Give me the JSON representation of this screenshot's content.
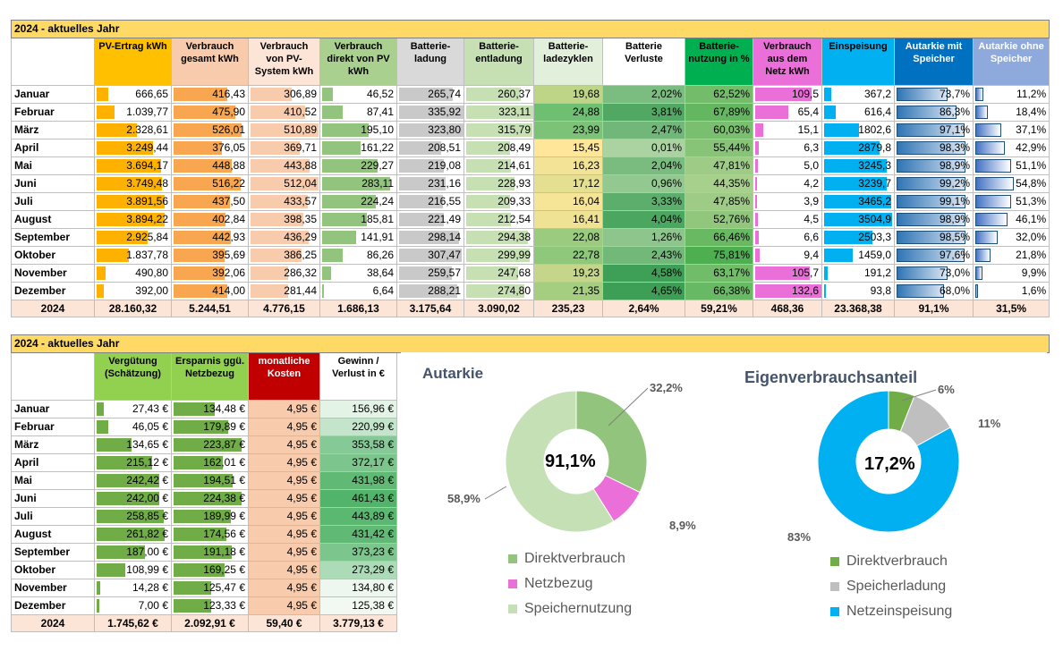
{
  "t1": {
    "title": "2024 - aktuelles Jahr",
    "headers": [
      "",
      "PV-Ertrag kWh",
      "Verbrauch gesamt  kWh",
      "Verbrauch von PV-System kWh",
      "Verbrauch direkt von PV kWh",
      "Batterie-ladung",
      "Batterie-entladung",
      "Batterie-ladezyklen",
      "Batterie Verluste",
      "Batterie-nutzung in %",
      "Verbrauch aus dem Netz kWh",
      "Einspeisung",
      "Autarkie mit Speicher",
      "Autarkie ohne Speicher"
    ],
    "rows": [
      [
        "Januar",
        "666,65",
        "416,43",
        "306,89",
        "46,52",
        "265,74",
        "260,37",
        "19,68",
        "2,02%",
        "62,52%",
        "109,5",
        "367,2",
        "73,7%",
        "11,2%"
      ],
      [
        "Februar",
        "1.039,77",
        "475,90",
        "410,52",
        "87,41",
        "335,92",
        "323,11",
        "24,88",
        "3,81%",
        "67,89%",
        "65,4",
        "616,4",
        "86,3%",
        "18,4%"
      ],
      [
        "März",
        "2.328,61",
        "526,01",
        "510,89",
        "195,10",
        "323,80",
        "315,79",
        "23,99",
        "2,47%",
        "60,03%",
        "15,1",
        "1802,6",
        "97,1%",
        "37,1%"
      ],
      [
        "April",
        "3.249,44",
        "376,05",
        "369,71",
        "161,22",
        "208,51",
        "208,49",
        "15,45",
        "0,01%",
        "55,44%",
        "6,3",
        "2879,8",
        "98,3%",
        "42,9%"
      ],
      [
        "Mai",
        "3.694,17",
        "448,88",
        "443,88",
        "229,27",
        "219,08",
        "214,61",
        "16,23",
        "2,04%",
        "47,81%",
        "5,0",
        "3245,3",
        "98,9%",
        "51,1%"
      ],
      [
        "Juni",
        "3.749,48",
        "516,22",
        "512,04",
        "283,11",
        "231,16",
        "228,93",
        "17,12",
        "0,96%",
        "44,35%",
        "4,2",
        "3239,7",
        "99,2%",
        "54,8%"
      ],
      [
        "Juli",
        "3.891,56",
        "437,50",
        "433,57",
        "224,24",
        "216,55",
        "209,33",
        "16,04",
        "3,33%",
        "47,85%",
        "3,9",
        "3465,2",
        "99,1%",
        "51,3%"
      ],
      [
        "August",
        "3.894,22",
        "402,84",
        "398,35",
        "185,81",
        "221,49",
        "212,54",
        "16,41",
        "4,04%",
        "52,76%",
        "4,5",
        "3504,9",
        "98,9%",
        "46,1%"
      ],
      [
        "September",
        "2.925,84",
        "442,93",
        "436,29",
        "141,91",
        "298,14",
        "294,38",
        "22,08",
        "1,26%",
        "66,46%",
        "6,6",
        "2503,3",
        "98,5%",
        "32,0%"
      ],
      [
        "Oktober",
        "1.837,78",
        "395,69",
        "386,25",
        "86,26",
        "307,47",
        "299,99",
        "22,78",
        "2,43%",
        "75,81%",
        "9,4",
        "1459,0",
        "97,6%",
        "21,8%"
      ],
      [
        "November",
        "490,80",
        "392,06",
        "286,32",
        "38,64",
        "259,57",
        "247,68",
        "19,23",
        "4,58%",
        "63,17%",
        "105,7",
        "191,2",
        "73,0%",
        "9,9%"
      ],
      [
        "Dezember",
        "392,00",
        "414,00",
        "281,44",
        "6,64",
        "288,21",
        "274,80",
        "21,35",
        "4,65%",
        "66,38%",
        "132,6",
        "93,8",
        "68,0%",
        "1,6%"
      ]
    ],
    "total": [
      "2024",
      "28.160,32",
      "5.244,51",
      "4.776,15",
      "1.686,13",
      "3.175,64",
      "3.090,02",
      "235,23",
      "2,64%",
      "59,21%",
      "468,36",
      "23.368,38",
      "91,1%",
      "31,5%"
    ]
  },
  "t2": {
    "title": "2024 - aktuelles Jahr",
    "headers": [
      "",
      "Vergütung (Schätzung)",
      "Ersparnis ggü. Netzbezug",
      "monatliche Kosten",
      "Gewinn / Verlust in €"
    ],
    "rows": [
      [
        "Januar",
        "27,43 €",
        "134,48 €",
        "4,95 €",
        "156,96 €"
      ],
      [
        "Februar",
        "46,05 €",
        "179,89 €",
        "4,95 €",
        "220,99 €"
      ],
      [
        "März",
        "134,65 €",
        "223,87 €",
        "4,95 €",
        "353,58 €"
      ],
      [
        "April",
        "215,12 €",
        "162,01 €",
        "4,95 €",
        "372,17 €"
      ],
      [
        "Mai",
        "242,42 €",
        "194,51 €",
        "4,95 €",
        "431,98 €"
      ],
      [
        "Juni",
        "242,00 €",
        "224,38 €",
        "4,95 €",
        "461,43 €"
      ],
      [
        "Juli",
        "258,85 €",
        "189,99 €",
        "4,95 €",
        "443,89 €"
      ],
      [
        "August",
        "261,82 €",
        "174,56 €",
        "4,95 €",
        "431,42 €"
      ],
      [
        "September",
        "187,00 €",
        "191,18 €",
        "4,95 €",
        "373,23 €"
      ],
      [
        "Oktober",
        "108,99 €",
        "169,25 €",
        "4,95 €",
        "273,29 €"
      ],
      [
        "November",
        "14,28 €",
        "125,47 €",
        "4,95 €",
        "134,80 €"
      ],
      [
        "Dezember",
        "7,00 €",
        "123,33 €",
        "4,95 €",
        "125,38 €"
      ]
    ],
    "total": [
      "2024",
      "1.745,62 €",
      "2.092,91 €",
      "59,40 €",
      "3.779,13 €"
    ]
  },
  "chart_data": [
    {
      "type": "pie",
      "title": "Autarkie",
      "center_label": "91,1%",
      "categories": [
        "Direktverbrauch",
        "Netzbezug",
        "Speichernutzung"
      ],
      "values": [
        32.2,
        8.9,
        58.9
      ],
      "labels": [
        "32,2%",
        "8,9%",
        "58,9%"
      ],
      "colors": [
        "#92c47d",
        "#ea6fd8",
        "#c5e0b4"
      ]
    },
    {
      "type": "pie",
      "title": "Eigenverbrauchsanteil",
      "center_label": "17,2%",
      "categories": [
        "Direktverbrauch",
        "Speicherladung",
        "Netzeinspeisung"
      ],
      "values": [
        6,
        11,
        83
      ],
      "labels": [
        "6%",
        "11%",
        "83%"
      ],
      "colors": [
        "#70ad47",
        "#bfbfbf",
        "#00b0f0"
      ]
    }
  ]
}
